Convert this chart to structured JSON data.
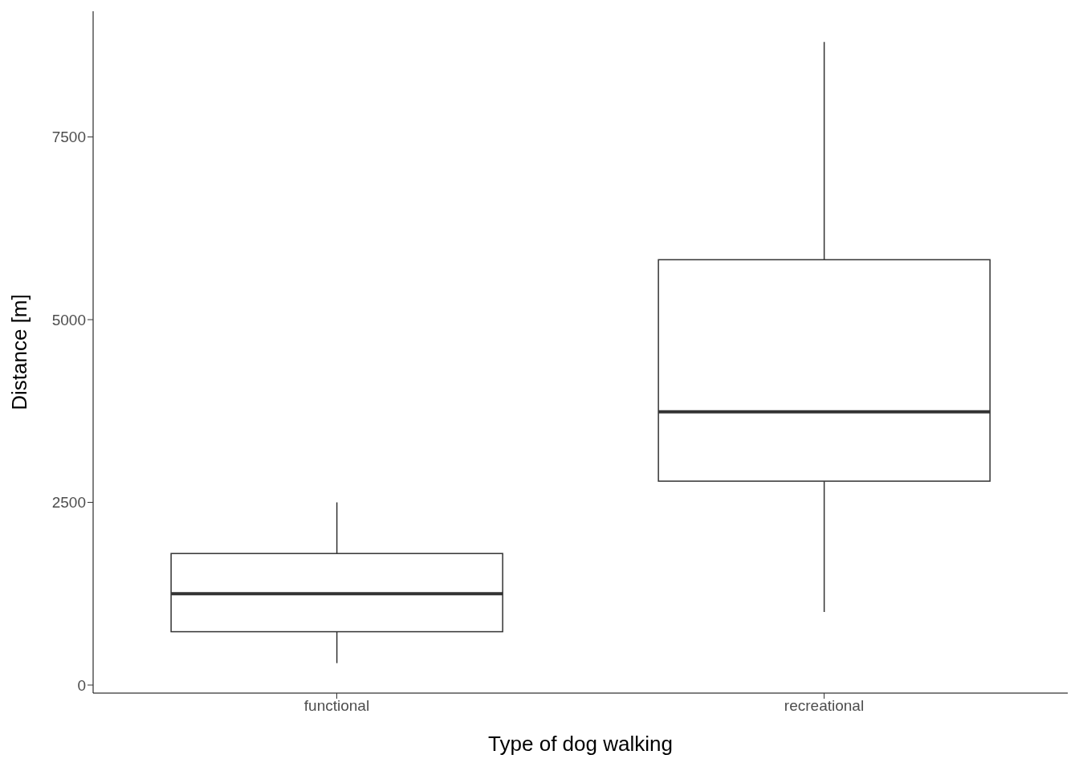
{
  "chart_data": {
    "type": "box",
    "xlabel": "Type of dog walking",
    "ylabel": "Distance [m]",
    "categories": [
      "functional",
      "recreational"
    ],
    "boxes": [
      {
        "low": 300,
        "q1": 730,
        "median": 1250,
        "q3": 1800,
        "high": 2500
      },
      {
        "low": 1000,
        "q1": 2790,
        "median": 3740,
        "q3": 5820,
        "high": 8800
      }
    ],
    "color": "#333333",
    "ylim": [
      -110,
      9220
    ],
    "yticks": [
      0,
      2500,
      5000,
      7500
    ],
    "grid": false
  }
}
